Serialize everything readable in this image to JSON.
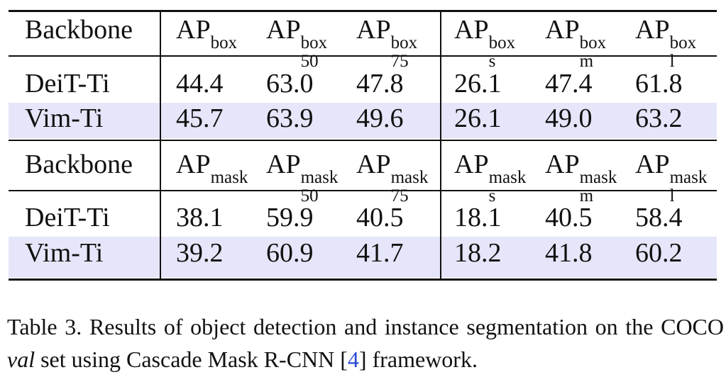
{
  "tables": [
    {
      "header": [
        {
          "text": "Backbone"
        },
        {
          "base": "AP",
          "sup": "box"
        },
        {
          "base": "AP",
          "sup": "box",
          "sub": "50"
        },
        {
          "base": "AP",
          "sup": "box",
          "sub": "75"
        },
        {
          "base": "AP",
          "sup": "box",
          "sub": "s"
        },
        {
          "base": "AP",
          "sup": "box",
          "sub": "m"
        },
        {
          "base": "AP",
          "sup": "box",
          "sub": "l"
        }
      ],
      "rows": [
        [
          "DeiT-Ti",
          "44.4",
          "63.0",
          "47.8",
          "26.1",
          "47.4",
          "61.8"
        ],
        [
          "Vim-Ti",
          "45.7",
          "63.9",
          "49.6",
          "26.1",
          "49.0",
          "63.2"
        ]
      ]
    },
    {
      "header": [
        {
          "text": "Backbone"
        },
        {
          "base": "AP",
          "sup": "mask"
        },
        {
          "base": "AP",
          "sup": "mask",
          "sub": "50"
        },
        {
          "base": "AP",
          "sup": "mask",
          "sub": "75"
        },
        {
          "base": "AP",
          "sup": "mask",
          "sub": "s"
        },
        {
          "base": "AP",
          "sup": "mask",
          "sub": "m"
        },
        {
          "base": "AP",
          "sup": "mask",
          "sub": "l"
        }
      ],
      "rows": [
        [
          "DeiT-Ti",
          "38.1",
          "59.9",
          "40.5",
          "18.1",
          "40.5",
          "58.4"
        ],
        [
          "Vim-Ti",
          "39.2",
          "60.9",
          "41.7",
          "18.2",
          "41.8",
          "60.2"
        ]
      ]
    }
  ],
  "caption": {
    "label": "Table 3.",
    "text_before": "Results of object detection and instance segmentation on the COCO",
    "italic": "val",
    "text_middle": "set using Cascade Mask R-CNN [",
    "ref": "4",
    "text_after": "] framework."
  }
}
